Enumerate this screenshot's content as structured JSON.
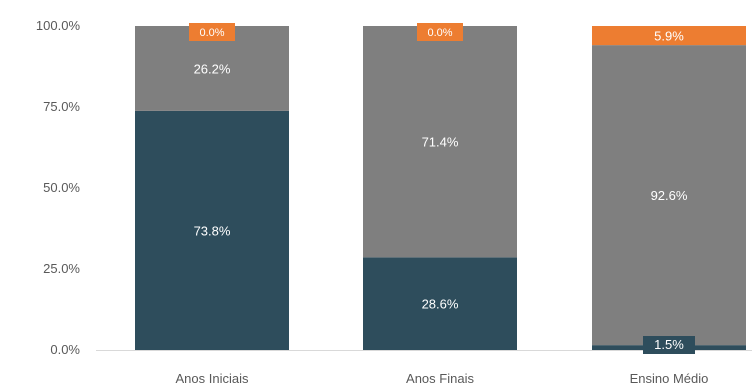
{
  "chart_data": {
    "type": "bar",
    "stacked": true,
    "categories": [
      "Anos Iniciais",
      "Anos Finais",
      "Ensino Médio"
    ],
    "series": [
      {
        "color": "#2e4d5c",
        "values": [
          73.8,
          28.6,
          1.5
        ],
        "labels": [
          "73.8%",
          "28.6%",
          "1.5%"
        ]
      },
      {
        "color": "#7f7f7f",
        "values": [
          26.2,
          71.4,
          92.6
        ],
        "labels": [
          "26.2%",
          "71.4%",
          "92.6%"
        ]
      },
      {
        "color": "#ed7d31",
        "values": [
          0.0,
          0.0,
          5.9
        ],
        "labels": [
          "0.0%",
          "0.0%",
          "5.9%"
        ]
      }
    ],
    "ylim": [
      0,
      100
    ],
    "yticks": [
      0,
      25,
      50,
      75,
      100
    ],
    "ytick_labels": [
      "0.0%",
      "25.0%",
      "50.0%",
      "75.0%",
      "100.0%"
    ],
    "title": "",
    "xlabel": "",
    "ylabel": "",
    "grid": false,
    "legend": "none"
  }
}
